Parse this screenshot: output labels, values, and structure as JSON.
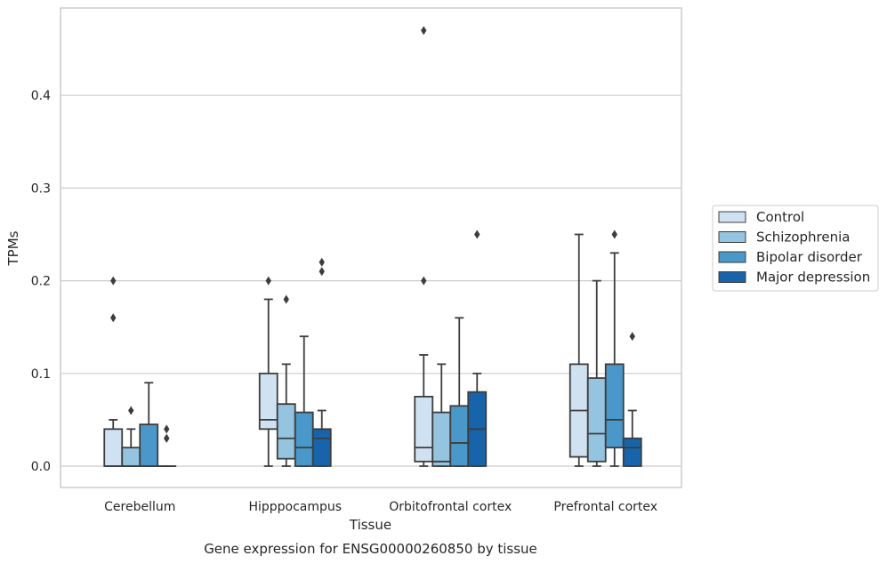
{
  "caption": "Gene expression for ENSG00000260850 by tissue",
  "chart_data": {
    "type": "box",
    "title": "",
    "xlabel": "Tissue",
    "ylabel": "TPMs",
    "ylim": [
      -0.023,
      0.49
    ],
    "yticks": [
      0.0,
      0.1,
      0.2,
      0.3,
      0.4
    ],
    "ytick_labels": [
      "0.0",
      "0.1",
      "0.2",
      "0.3",
      "0.4"
    ],
    "grid": "horizontal",
    "legend_position": "right",
    "categories": [
      "Cerebellum",
      "Hipppocampus",
      "Orbitofrontal cortex",
      "Prefrontal cortex"
    ],
    "series": [
      {
        "name": "Control",
        "color": "#d0e1f2",
        "boxes": [
          {
            "whislo": 0.0,
            "q1": 0.0,
            "med": 0.0,
            "q3": 0.04,
            "whishi": 0.05,
            "fliers": [
              0.16,
              0.2
            ]
          },
          {
            "whislo": 0.0,
            "q1": 0.04,
            "med": 0.05,
            "q3": 0.1,
            "whishi": 0.18,
            "fliers": [
              0.2
            ]
          },
          {
            "whislo": 0.0,
            "q1": 0.005,
            "med": 0.02,
            "q3": 0.075,
            "whishi": 0.12,
            "fliers": [
              0.2,
              0.47
            ]
          },
          {
            "whislo": 0.0,
            "q1": 0.01,
            "med": 0.06,
            "q3": 0.11,
            "whishi": 0.25,
            "fliers": []
          }
        ]
      },
      {
        "name": "Schizophrenia",
        "color": "#94c4df",
        "boxes": [
          {
            "whislo": 0.0,
            "q1": 0.0,
            "med": 0.0,
            "q3": 0.02,
            "whishi": 0.04,
            "fliers": [
              0.06
            ]
          },
          {
            "whislo": 0.0,
            "q1": 0.008,
            "med": 0.03,
            "q3": 0.067,
            "whishi": 0.11,
            "fliers": [
              0.18
            ]
          },
          {
            "whislo": 0.0,
            "q1": 0.0,
            "med": 0.005,
            "q3": 0.058,
            "whishi": 0.11,
            "fliers": []
          },
          {
            "whislo": 0.0,
            "q1": 0.005,
            "med": 0.035,
            "q3": 0.095,
            "whishi": 0.2,
            "fliers": []
          }
        ]
      },
      {
        "name": "Bipolar disorder",
        "color": "#4a98c9",
        "boxes": [
          {
            "whislo": 0.0,
            "q1": 0.0,
            "med": 0.0,
            "q3": 0.045,
            "whishi": 0.09,
            "fliers": []
          },
          {
            "whislo": 0.0,
            "q1": 0.0,
            "med": 0.02,
            "q3": 0.058,
            "whishi": 0.14,
            "fliers": []
          },
          {
            "whislo": 0.0,
            "q1": 0.0,
            "med": 0.025,
            "q3": 0.065,
            "whishi": 0.16,
            "fliers": []
          },
          {
            "whislo": 0.0,
            "q1": 0.02,
            "med": 0.05,
            "q3": 0.11,
            "whishi": 0.23,
            "fliers": [
              0.25
            ]
          }
        ]
      },
      {
        "name": "Major depression",
        "color": "#1764ab",
        "boxes": [
          {
            "whislo": 0.0,
            "q1": 0.0,
            "med": 0.0,
            "q3": 0.0,
            "whishi": 0.0,
            "fliers": [
              0.03,
              0.03,
              0.04
            ]
          },
          {
            "whislo": 0.0,
            "q1": 0.0,
            "med": 0.03,
            "q3": 0.04,
            "whishi": 0.06,
            "fliers": [
              0.21,
              0.22
            ]
          },
          {
            "whislo": 0.0,
            "q1": 0.0,
            "med": 0.04,
            "q3": 0.08,
            "whishi": 0.1,
            "fliers": [
              0.25
            ]
          },
          {
            "whislo": 0.0,
            "q1": 0.0,
            "med": 0.02,
            "q3": 0.03,
            "whishi": 0.06,
            "fliers": [
              0.14
            ]
          }
        ]
      }
    ]
  }
}
